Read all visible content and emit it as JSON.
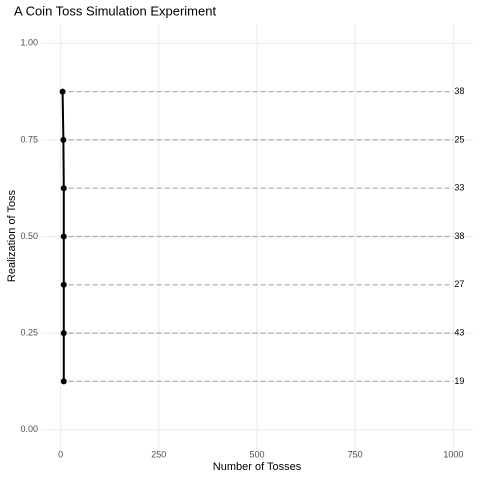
{
  "chart_data": {
    "type": "line",
    "title": "A Coin Toss Simulation Experiment",
    "x_label": "Number of Tosses",
    "y_label": "Realization of Toss",
    "x": [
      5,
      7,
      8,
      8,
      8,
      8,
      8
    ],
    "series": [
      {
        "color": "#000000",
        "values": [
          0.875,
          0.75,
          0.625,
          0.5,
          0.375,
          0.25,
          0.125
        ]
      }
    ],
    "hline_range": [
      0,
      1000
    ],
    "hlines": [
      {
        "y": 0.875,
        "label": "38"
      },
      {
        "y": 0.75,
        "label": "25"
      },
      {
        "y": 0.625,
        "label": "33"
      },
      {
        "y": 0.5,
        "label": "38"
      },
      {
        "y": 0.375,
        "label": "27"
      },
      {
        "y": 0.25,
        "label": "43"
      },
      {
        "y": 0.125,
        "label": "19"
      }
    ],
    "hline_color": "#aaaaaa",
    "xlim": [
      -50,
      1050
    ],
    "xticks": [
      0,
      250,
      500,
      750,
      1000
    ],
    "ylim": [
      -0.05,
      1.05
    ],
    "yticks": [
      {
        "value": 0,
        "label": "0.00"
      },
      {
        "value": 0.25,
        "label": "0.25"
      },
      {
        "value": 0.5,
        "label": "0.50"
      },
      {
        "value": 0.75,
        "label": "0.75"
      },
      {
        "value": 1,
        "label": "1.00"
      }
    ],
    "grid": true
  }
}
